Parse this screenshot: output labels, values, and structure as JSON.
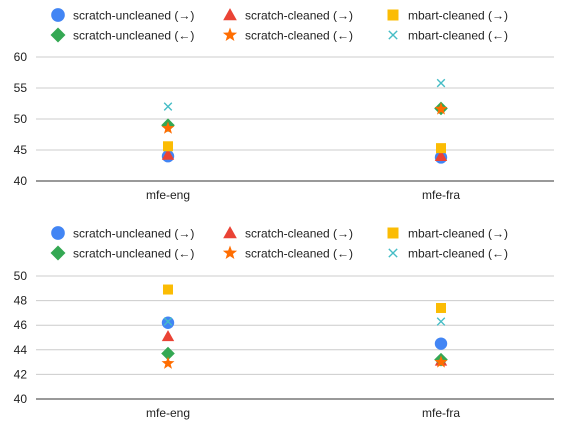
{
  "chart_data": [
    {
      "type": "scatter",
      "title": "",
      "xlabel": "",
      "ylabel": "",
      "categories": [
        "mfe-eng",
        "mfe-fra"
      ],
      "ylim": [
        40,
        60
      ],
      "yticks": [
        40,
        45,
        50,
        55,
        60
      ],
      "grid": true,
      "legend": "top",
      "series": [
        {
          "name": "scratch-uncleaned (→)",
          "marker": "circle",
          "color": "#4285F4",
          "values": [
            44.0,
            43.8
          ]
        },
        {
          "name": "scratch-cleaned (→)",
          "marker": "triangle",
          "color": "#EA4335",
          "values": [
            44.2,
            44.0
          ]
        },
        {
          "name": "mbart-cleaned (→)",
          "marker": "square",
          "color": "#FBBC04",
          "values": [
            45.6,
            45.3
          ]
        },
        {
          "name": "scratch-uncleaned (←)",
          "marker": "diamond",
          "color": "#34A853",
          "values": [
            49.0,
            51.7
          ]
        },
        {
          "name": "scratch-cleaned (←)",
          "marker": "star",
          "color": "#FF6D01",
          "values": [
            48.5,
            51.6
          ]
        },
        {
          "name": "mbart-cleaned (←)",
          "marker": "x",
          "color": "#46BDC6",
          "values": [
            52.0,
            55.8
          ]
        }
      ]
    },
    {
      "type": "scatter",
      "title": "",
      "xlabel": "",
      "ylabel": "",
      "categories": [
        "mfe-eng",
        "mfe-fra"
      ],
      "ylim": [
        40,
        50
      ],
      "yticks": [
        40,
        42,
        44,
        46,
        48,
        50
      ],
      "grid": true,
      "legend": "top",
      "series": [
        {
          "name": "scratch-uncleaned (→)",
          "marker": "circle",
          "color": "#4285F4",
          "values": [
            46.2,
            44.5
          ]
        },
        {
          "name": "scratch-cleaned (→)",
          "marker": "triangle",
          "color": "#EA4335",
          "values": [
            45.1,
            43.1
          ]
        },
        {
          "name": "mbart-cleaned (→)",
          "marker": "square",
          "color": "#FBBC04",
          "values": [
            48.9,
            47.4
          ]
        },
        {
          "name": "scratch-uncleaned (←)",
          "marker": "diamond",
          "color": "#34A853",
          "values": [
            43.7,
            43.2
          ]
        },
        {
          "name": "scratch-cleaned (←)",
          "marker": "star",
          "color": "#FF6D01",
          "values": [
            42.9,
            43.0
          ]
        },
        {
          "name": "mbart-cleaned (←)",
          "marker": "x",
          "color": "#46BDC6",
          "values": [
            46.3,
            46.3
          ]
        }
      ]
    }
  ]
}
